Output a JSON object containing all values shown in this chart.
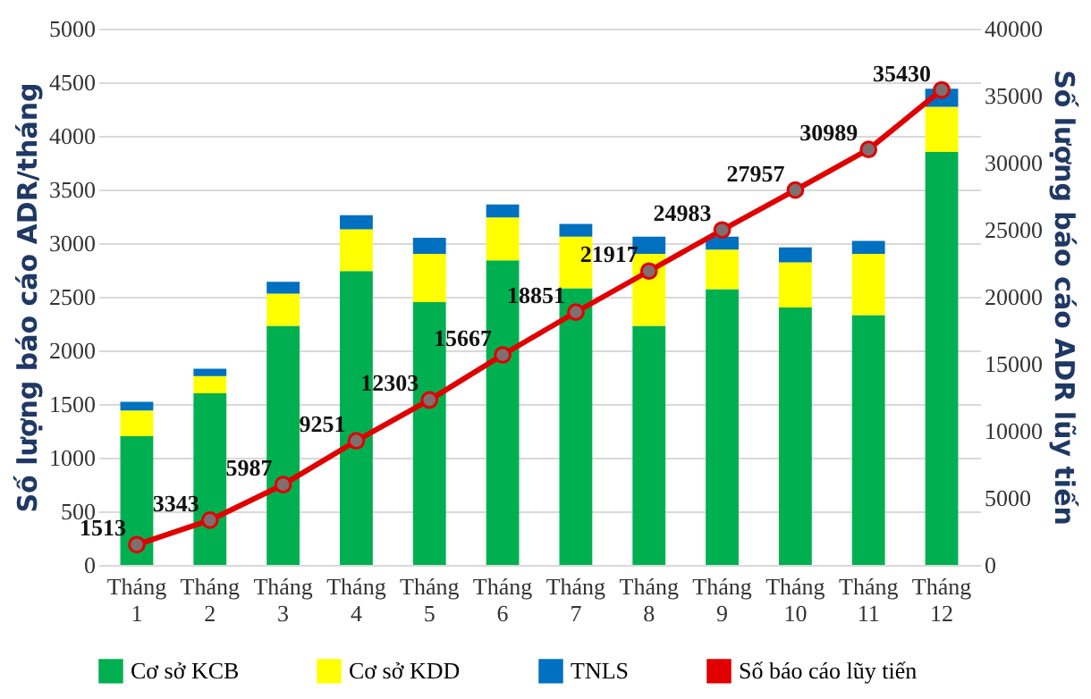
{
  "chart_data": {
    "type": "bar",
    "stacked": true,
    "ylabel": "Số lượng báo cáo ADR/tháng",
    "y2label": "Số lượng báo cáo ADR lũy tiến",
    "categories": [
      "Tháng 1",
      "Tháng 2",
      "Tháng 3",
      "Tháng 4",
      "Tháng 5",
      "Tháng 6",
      "Tháng 7",
      "Tháng 8",
      "Tháng 9",
      "Tháng 10",
      "Tháng 11",
      "Tháng 12"
    ],
    "series": [
      {
        "name": "Cơ sở KCB",
        "color": "#00b050",
        "values": [
          1200,
          1600,
          2230,
          2740,
          2450,
          2840,
          2580,
          2230,
          2570,
          2400,
          2330,
          3850
        ]
      },
      {
        "name": "Cơ sở KDD",
        "color": "#ffff00",
        "values": [
          240,
          160,
          300,
          390,
          450,
          400,
          480,
          670,
          370,
          420,
          570,
          420
        ]
      },
      {
        "name": "TNLS",
        "color": "#0070c0",
        "values": [
          80,
          70,
          110,
          130,
          150,
          120,
          120,
          160,
          120,
          140,
          120,
          170
        ]
      },
      {
        "name": "Số báo cáo lũy tiến",
        "color": "#e00000",
        "type": "line",
        "axis": "y2",
        "marker": "circle",
        "values": [
          1513,
          3343,
          5987,
          9251,
          12303,
          15667,
          18851,
          21917,
          24983,
          27957,
          30989,
          35430
        ],
        "value_labels": [
          "1513",
          "3343",
          "5987",
          "9251",
          "12303",
          "15667",
          "18851",
          "21917",
          "24983",
          "27957",
          "30989",
          "35430"
        ]
      }
    ],
    "ylim": [
      0,
      5000
    ],
    "yticks": [
      0,
      500,
      1000,
      1500,
      2000,
      2500,
      3000,
      3500,
      4000,
      4500,
      5000
    ],
    "y2lim": [
      0,
      40000
    ],
    "y2ticks": [
      0,
      5000,
      10000,
      15000,
      20000,
      25000,
      30000,
      35000,
      40000
    ],
    "grid": "y",
    "legend": "bottom"
  }
}
